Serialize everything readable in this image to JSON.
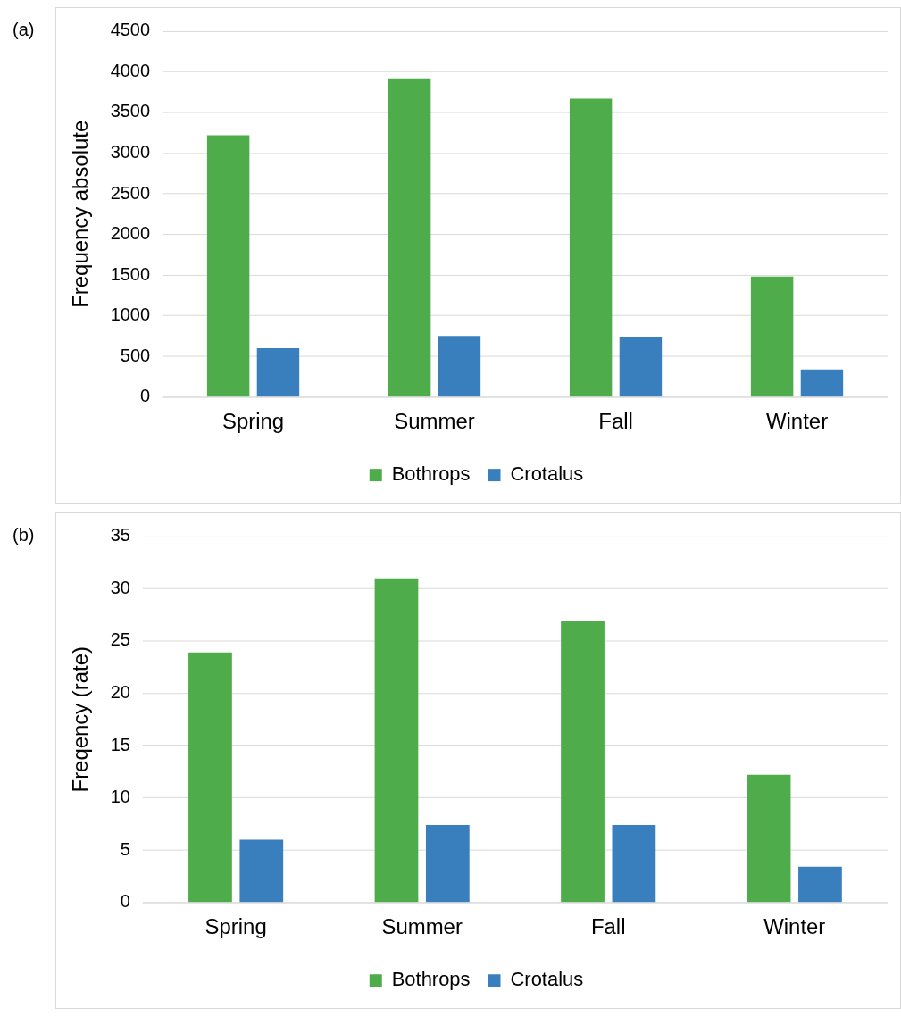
{
  "chart_data": [
    {
      "type": "bar",
      "annotations": [
        "(a)"
      ],
      "ylabel": "Frequency absolute",
      "categories": [
        "Spring",
        "Summer",
        "Fall",
        "Winter"
      ],
      "series": [
        {
          "name": "Bothrops",
          "color": "#4eac4b",
          "values": [
            3220,
            3920,
            3670,
            1480
          ]
        },
        {
          "name": "Crotalus",
          "color": "#3a7fbd",
          "values": [
            600,
            750,
            740,
            340
          ]
        }
      ],
      "ylim": [
        0,
        4500
      ],
      "yticks": [
        0,
        500,
        1000,
        1500,
        2000,
        2500,
        3000,
        3500,
        4000,
        4500
      ],
      "grid": "y",
      "legend": "bottom"
    },
    {
      "type": "bar",
      "annotations": [
        "(b)"
      ],
      "ylabel": "Freqency (rate)",
      "categories": [
        "Spring",
        "Summer",
        "Fall",
        "Winter"
      ],
      "series": [
        {
          "name": "Bothrops",
          "color": "#4eac4b",
          "values": [
            23.9,
            31,
            26.9,
            12.2
          ]
        },
        {
          "name": "Crotalus",
          "color": "#3a7fbd",
          "values": [
            6,
            7.4,
            7.4,
            3.4
          ]
        }
      ],
      "ylim": [
        0,
        35
      ],
      "yticks": [
        0,
        5,
        10,
        15,
        20,
        25,
        30,
        35
      ],
      "grid": "y",
      "legend": "bottom"
    }
  ]
}
